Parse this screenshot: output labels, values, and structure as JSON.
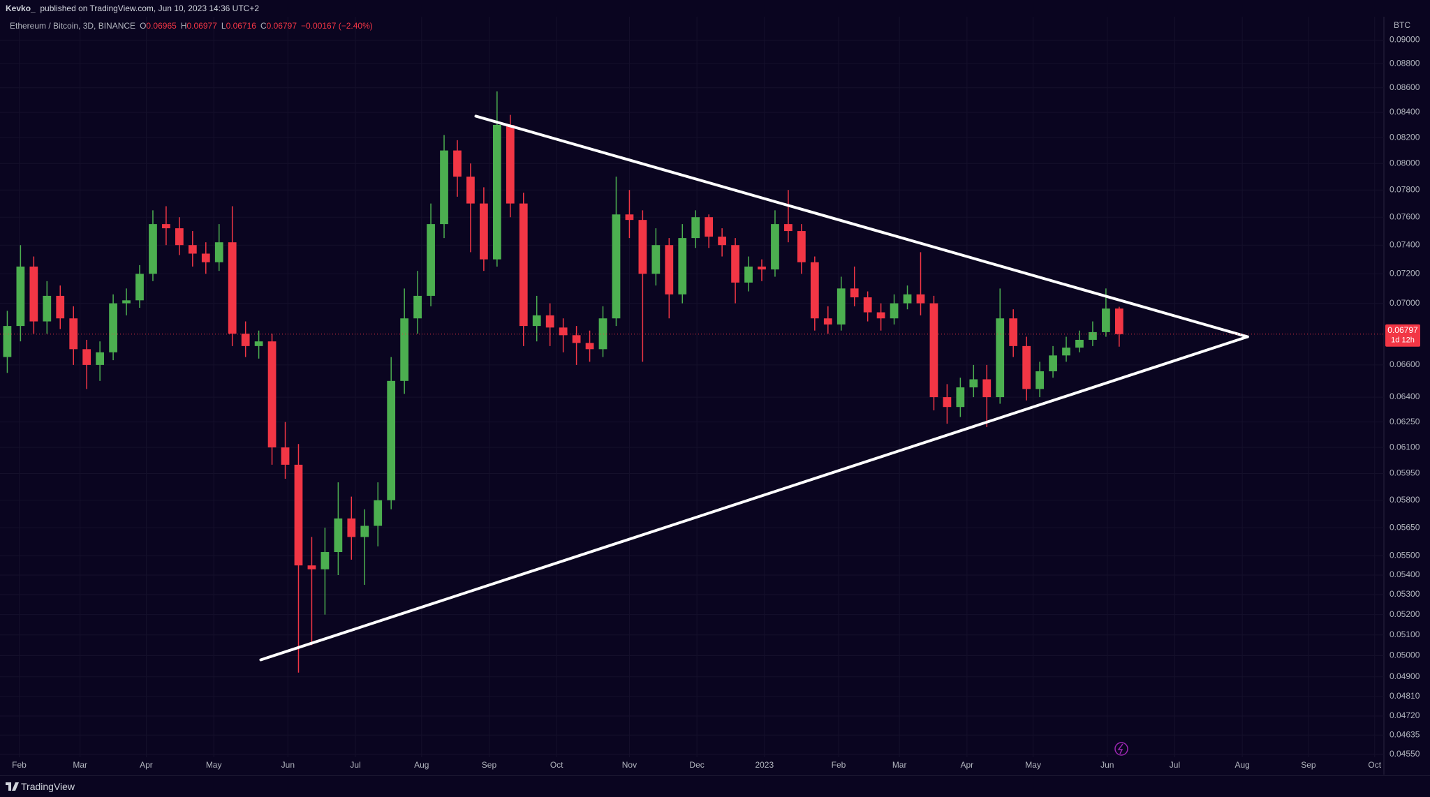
{
  "header": {
    "author": "Kevko_",
    "published": "published on TradingView.com, Jun 10, 2023 14:36 UTC+2"
  },
  "footer": {
    "brand": "TradingView"
  },
  "chart_data": {
    "type": "candlestick",
    "symbol": "Ethereum / Bitcoin, 3D, BINANCE",
    "legend_items": [
      {
        "key": "O",
        "value": "0.06965"
      },
      {
        "key": "H",
        "value": "0.06977"
      },
      {
        "key": "L",
        "value": "0.06716"
      },
      {
        "key": "C",
        "value": "0.06797"
      }
    ],
    "change": "−0.00167 (−2.40%)",
    "currency": "BTC",
    "last_price_label": "0.06797",
    "countdown": "1d 12h",
    "up_color": "#4caf50",
    "down_color": "#f23645",
    "trendline_color": "#ffffff",
    "log_scale": true,
    "grid": true,
    "open": [
      0.0665,
      0.0685,
      0.0725,
      0.0688,
      0.0705,
      0.069,
      0.067,
      0.066,
      0.0668,
      0.07,
      0.0702,
      0.072,
      0.0755,
      0.0752,
      0.074,
      0.0734,
      0.0728,
      0.0742,
      0.068,
      0.0672,
      0.0675,
      0.061,
      0.06,
      0.0545,
      0.0543,
      0.0552,
      0.057,
      0.056,
      0.0566,
      0.058,
      0.065,
      0.069,
      0.0705,
      0.0755,
      0.081,
      0.079,
      0.077,
      0.073,
      0.083,
      0.077,
      0.0685,
      0.0692,
      0.0684,
      0.0679,
      0.0674,
      0.067,
      0.069,
      0.0762,
      0.0758,
      0.072,
      0.074,
      0.0706,
      0.0745,
      0.076,
      0.0746,
      0.074,
      0.0714,
      0.0725,
      0.0723,
      0.0755,
      0.075,
      0.0728,
      0.069,
      0.0686,
      0.071,
      0.0704,
      0.0694,
      0.069,
      0.07,
      0.0706,
      0.07,
      0.064,
      0.0634,
      0.0646,
      0.0651,
      0.064,
      0.069,
      0.0672,
      0.0645,
      0.0656,
      0.0666,
      0.0671,
      0.0676,
      0.0681,
      0.06965
    ],
    "high": [
      0.0695,
      0.074,
      0.0732,
      0.0715,
      0.0712,
      0.0698,
      0.0676,
      0.0675,
      0.0706,
      0.071,
      0.0726,
      0.0765,
      0.0768,
      0.076,
      0.075,
      0.0742,
      0.0755,
      0.0768,
      0.0688,
      0.0682,
      0.068,
      0.0625,
      0.0612,
      0.056,
      0.0565,
      0.059,
      0.0582,
      0.0575,
      0.059,
      0.0665,
      0.071,
      0.0722,
      0.077,
      0.0822,
      0.0818,
      0.08,
      0.0782,
      0.0857,
      0.0838,
      0.0778,
      0.0705,
      0.07,
      0.069,
      0.0685,
      0.0682,
      0.0698,
      0.079,
      0.078,
      0.0765,
      0.0752,
      0.0745,
      0.0755,
      0.0765,
      0.0762,
      0.0752,
      0.0745,
      0.0732,
      0.073,
      0.0765,
      0.078,
      0.0755,
      0.0732,
      0.0698,
      0.0718,
      0.0725,
      0.0708,
      0.07,
      0.0706,
      0.0712,
      0.0735,
      0.0705,
      0.0648,
      0.0652,
      0.066,
      0.066,
      0.071,
      0.0696,
      0.0678,
      0.0662,
      0.0672,
      0.0678,
      0.0682,
      0.0688,
      0.071,
      0.06977
    ],
    "low": [
      0.0655,
      0.0675,
      0.068,
      0.068,
      0.0683,
      0.066,
      0.0645,
      0.065,
      0.0663,
      0.0692,
      0.0697,
      0.0715,
      0.074,
      0.0733,
      0.0725,
      0.072,
      0.0722,
      0.0672,
      0.0665,
      0.0664,
      0.06,
      0.0592,
      0.0492,
      0.0505,
      0.052,
      0.054,
      0.0548,
      0.0535,
      0.0555,
      0.0575,
      0.0642,
      0.068,
      0.0698,
      0.0745,
      0.0775,
      0.0735,
      0.0722,
      0.0725,
      0.076,
      0.0672,
      0.0675,
      0.0672,
      0.0668,
      0.066,
      0.0662,
      0.0665,
      0.0685,
      0.0745,
      0.0662,
      0.0712,
      0.069,
      0.07,
      0.0738,
      0.0738,
      0.0732,
      0.07,
      0.0708,
      0.0715,
      0.0718,
      0.0742,
      0.072,
      0.0682,
      0.068,
      0.0682,
      0.0698,
      0.0688,
      0.0682,
      0.0686,
      0.0696,
      0.0692,
      0.0632,
      0.0624,
      0.0628,
      0.064,
      0.0622,
      0.0636,
      0.0665,
      0.0638,
      0.064,
      0.0652,
      0.0662,
      0.0668,
      0.0672,
      0.0678,
      0.06716
    ],
    "close": [
      0.0685,
      0.0725,
      0.0688,
      0.0705,
      0.069,
      0.067,
      0.066,
      0.0668,
      0.07,
      0.0702,
      0.072,
      0.0755,
      0.0752,
      0.074,
      0.0734,
      0.0728,
      0.0742,
      0.068,
      0.0672,
      0.0675,
      0.061,
      0.06,
      0.0545,
      0.0543,
      0.0552,
      0.057,
      0.056,
      0.0566,
      0.058,
      0.065,
      0.069,
      0.0705,
      0.0755,
      0.081,
      0.079,
      0.077,
      0.073,
      0.083,
      0.077,
      0.0685,
      0.0692,
      0.0684,
      0.0679,
      0.0674,
      0.067,
      0.069,
      0.0762,
      0.0758,
      0.072,
      0.074,
      0.0706,
      0.0745,
      0.076,
      0.0746,
      0.074,
      0.0714,
      0.0725,
      0.0723,
      0.0755,
      0.075,
      0.0728,
      0.069,
      0.0686,
      0.071,
      0.0704,
      0.0694,
      0.069,
      0.07,
      0.0706,
      0.07,
      0.064,
      0.0634,
      0.0646,
      0.0651,
      0.064,
      0.069,
      0.0672,
      0.0645,
      0.0656,
      0.0666,
      0.0671,
      0.0676,
      0.0681,
      0.06965,
      0.06797
    ],
    "trendlines": [
      {
        "x": [
          35.4,
          93.7
        ],
        "y": [
          0.0837,
          0.0678
        ]
      },
      {
        "x": [
          19.15,
          93.7
        ],
        "y": [
          0.0498,
          0.0678
        ]
      }
    ],
    "xlim": [
      -0.55,
      104
    ],
    "xticks": [
      {
        "value": 0.9,
        "label": "Feb"
      },
      {
        "value": 5.5,
        "label": "Mar"
      },
      {
        "value": 10.5,
        "label": "Apr"
      },
      {
        "value": 15.6,
        "label": "May"
      },
      {
        "value": 21.2,
        "label": "Jun"
      },
      {
        "value": 26.3,
        "label": "Jul"
      },
      {
        "value": 31.3,
        "label": "Aug"
      },
      {
        "value": 36.4,
        "label": "Sep"
      },
      {
        "value": 41.5,
        "label": "Oct"
      },
      {
        "value": 47.0,
        "label": "Nov"
      },
      {
        "value": 52.1,
        "label": "Dec"
      },
      {
        "value": 57.2,
        "label": "2023"
      },
      {
        "value": 62.8,
        "label": "Feb"
      },
      {
        "value": 67.4,
        "label": "Mar"
      },
      {
        "value": 72.5,
        "label": "Apr"
      },
      {
        "value": 77.5,
        "label": "May"
      },
      {
        "value": 83.1,
        "label": "Jun"
      },
      {
        "value": 88.2,
        "label": "Jul"
      },
      {
        "value": 93.3,
        "label": "Aug"
      },
      {
        "value": 98.3,
        "label": "Sep"
      },
      {
        "value": 103.3,
        "label": "Oct"
      }
    ],
    "ylim": [
      0.0455,
      0.09
    ],
    "yticks": [
      {
        "value": 0.09,
        "label": "0.09000"
      },
      {
        "value": 0.088,
        "label": "0.08800"
      },
      {
        "value": 0.086,
        "label": "0.08600"
      },
      {
        "value": 0.084,
        "label": "0.08400"
      },
      {
        "value": 0.082,
        "label": "0.08200"
      },
      {
        "value": 0.08,
        "label": "0.08000"
      },
      {
        "value": 0.078,
        "label": "0.07800"
      },
      {
        "value": 0.076,
        "label": "0.07600"
      },
      {
        "value": 0.074,
        "label": "0.07400"
      },
      {
        "value": 0.072,
        "label": "0.07200"
      },
      {
        "value": 0.07,
        "label": "0.07000"
      },
      {
        "value": 0.066,
        "label": "0.06600"
      },
      {
        "value": 0.064,
        "label": "0.06400"
      },
      {
        "value": 0.0625,
        "label": "0.06250"
      },
      {
        "value": 0.061,
        "label": "0.06100"
      },
      {
        "value": 0.0595,
        "label": "0.05950"
      },
      {
        "value": 0.058,
        "label": "0.05800"
      },
      {
        "value": 0.0565,
        "label": "0.05650"
      },
      {
        "value": 0.055,
        "label": "0.05500"
      },
      {
        "value": 0.054,
        "label": "0.05400"
      },
      {
        "value": 0.053,
        "label": "0.05300"
      },
      {
        "value": 0.052,
        "label": "0.05200"
      },
      {
        "value": 0.051,
        "label": "0.05100"
      },
      {
        "value": 0.05,
        "label": "0.05000"
      },
      {
        "value": 0.049,
        "label": "0.04900"
      },
      {
        "value": 0.0481,
        "label": "0.04810"
      },
      {
        "value": 0.0472,
        "label": "0.04720"
      },
      {
        "value": 0.04635,
        "label": "0.04635"
      },
      {
        "value": 0.0455,
        "label": "0.04550"
      }
    ]
  }
}
